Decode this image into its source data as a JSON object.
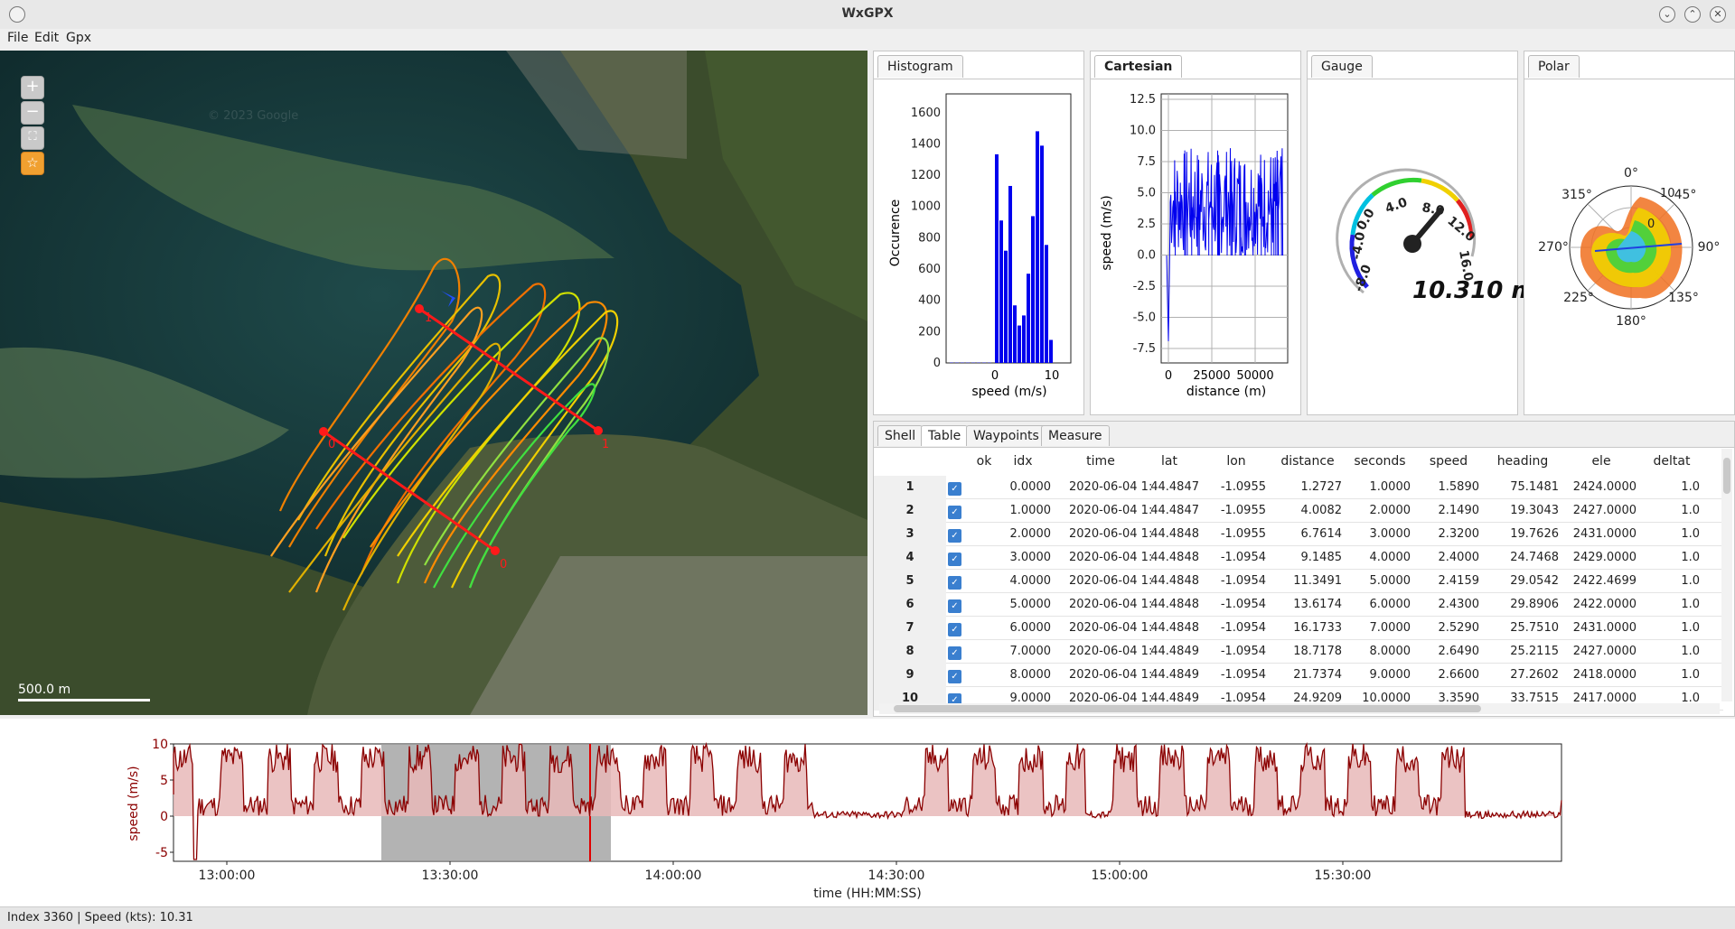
{
  "window": {
    "title": "WxGPX"
  },
  "menu": [
    "File",
    "Edit",
    "Gpx"
  ],
  "map": {
    "controls": [
      "zoom-in",
      "zoom-out",
      "fit",
      "favorite"
    ],
    "scale_label": "500.0 m",
    "watermark": "© 2023 Google",
    "markers": [
      "0",
      "1"
    ]
  },
  "panels": {
    "histogram": {
      "tab": "Histogram",
      "xlabel": "speed (m/s)",
      "ylabel": "Occurence",
      "yticks": [
        "0",
        "200",
        "400",
        "600",
        "800",
        "1000",
        "1200",
        "1400",
        "1600"
      ],
      "xticks": [
        "0",
        "10"
      ]
    },
    "cartesian": {
      "tab": "Cartesian",
      "xlabel": "distance (m)",
      "ylabel": "speed (m/s)",
      "yticks": [
        "-7.5",
        "-5.0",
        "-2.5",
        "0.0",
        "2.5",
        "5.0",
        "7.5",
        "10.0",
        "12.5"
      ],
      "xticks": [
        "0",
        "25000",
        "50000"
      ]
    },
    "gauge": {
      "tab": "Gauge",
      "readout": "10.310 m",
      "scale": [
        "-8.0",
        "-4.0",
        "0.0",
        "4.0",
        "8.0",
        "12.0",
        "16.0"
      ]
    },
    "polar": {
      "tab": "Polar",
      "angles": [
        "0°",
        "45°",
        "90°",
        "135°",
        "180°",
        "225°",
        "270°",
        "315°"
      ],
      "rings": [
        "0",
        "10"
      ]
    }
  },
  "table": {
    "tabs": [
      "Shell",
      "Table",
      "Waypoints",
      "Measure"
    ],
    "active_tab": "Table",
    "columns": [
      "ok",
      "idx",
      "time",
      "lat",
      "lon",
      "distance",
      "seconds",
      "speed",
      "heading",
      "ele",
      "deltat"
    ],
    "rows": [
      {
        "n": "1",
        "idx": "0.0000",
        "time": "2020-06-04 1:",
        "lat": "44.4847",
        "lon": "-1.0955",
        "distance": "1.2727",
        "seconds": "1.0000",
        "speed": "1.5890",
        "heading": "75.1481",
        "ele": "2424.0000",
        "deltat": "1.0"
      },
      {
        "n": "2",
        "idx": "1.0000",
        "time": "2020-06-04 1:",
        "lat": "44.4847",
        "lon": "-1.0955",
        "distance": "4.0082",
        "seconds": "2.0000",
        "speed": "2.1490",
        "heading": "19.3043",
        "ele": "2427.0000",
        "deltat": "1.0"
      },
      {
        "n": "3",
        "idx": "2.0000",
        "time": "2020-06-04 1:",
        "lat": "44.4848",
        "lon": "-1.0955",
        "distance": "6.7614",
        "seconds": "3.0000",
        "speed": "2.3200",
        "heading": "19.7626",
        "ele": "2431.0000",
        "deltat": "1.0"
      },
      {
        "n": "4",
        "idx": "3.0000",
        "time": "2020-06-04 1:",
        "lat": "44.4848",
        "lon": "-1.0954",
        "distance": "9.1485",
        "seconds": "4.0000",
        "speed": "2.4000",
        "heading": "24.7468",
        "ele": "2429.0000",
        "deltat": "1.0"
      },
      {
        "n": "5",
        "idx": "4.0000",
        "time": "2020-06-04 1:",
        "lat": "44.4848",
        "lon": "-1.0954",
        "distance": "11.3491",
        "seconds": "5.0000",
        "speed": "2.4159",
        "heading": "29.0542",
        "ele": "2422.4699",
        "deltat": "1.0"
      },
      {
        "n": "6",
        "idx": "5.0000",
        "time": "2020-06-04 1:",
        "lat": "44.4848",
        "lon": "-1.0954",
        "distance": "13.6174",
        "seconds": "6.0000",
        "speed": "2.4300",
        "heading": "29.8906",
        "ele": "2422.0000",
        "deltat": "1.0"
      },
      {
        "n": "7",
        "idx": "6.0000",
        "time": "2020-06-04 1:",
        "lat": "44.4848",
        "lon": "-1.0954",
        "distance": "16.1733",
        "seconds": "7.0000",
        "speed": "2.5290",
        "heading": "25.7510",
        "ele": "2431.0000",
        "deltat": "1.0"
      },
      {
        "n": "8",
        "idx": "7.0000",
        "time": "2020-06-04 1:",
        "lat": "44.4849",
        "lon": "-1.0954",
        "distance": "18.7178",
        "seconds": "8.0000",
        "speed": "2.6490",
        "heading": "25.2115",
        "ele": "2427.0000",
        "deltat": "1.0"
      },
      {
        "n": "9",
        "idx": "8.0000",
        "time": "2020-06-04 1:",
        "lat": "44.4849",
        "lon": "-1.0954",
        "distance": "21.7374",
        "seconds": "9.0000",
        "speed": "2.6600",
        "heading": "27.2602",
        "ele": "2418.0000",
        "deltat": "1.0"
      },
      {
        "n": "10",
        "idx": "9.0000",
        "time": "2020-06-04 1:",
        "lat": "44.4849",
        "lon": "-1.0954",
        "distance": "24.9209",
        "seconds": "10.0000",
        "speed": "3.3590",
        "heading": "33.7515",
        "ele": "2417.0000",
        "deltat": "1.0"
      }
    ]
  },
  "timeplot": {
    "ylabel": "speed (m/s)",
    "xlabel": "time (HH:MM:SS)",
    "yticks": [
      "10",
      "5",
      "0",
      "-5"
    ],
    "xticks": [
      "13:00:00",
      "13:30:00",
      "14:00:00",
      "14:30:00",
      "15:00:00",
      "15:30:00"
    ]
  },
  "status": {
    "text": "Index 3360 | Speed (kts): 10.31"
  },
  "colors": {
    "track_fast": "#e06000",
    "track_slow": "#40e040",
    "plot_line": "#8b0000",
    "plot_fill": "#e8b8b8",
    "selection": "#a0a0a0",
    "hist_bar": "#0000ee"
  }
}
